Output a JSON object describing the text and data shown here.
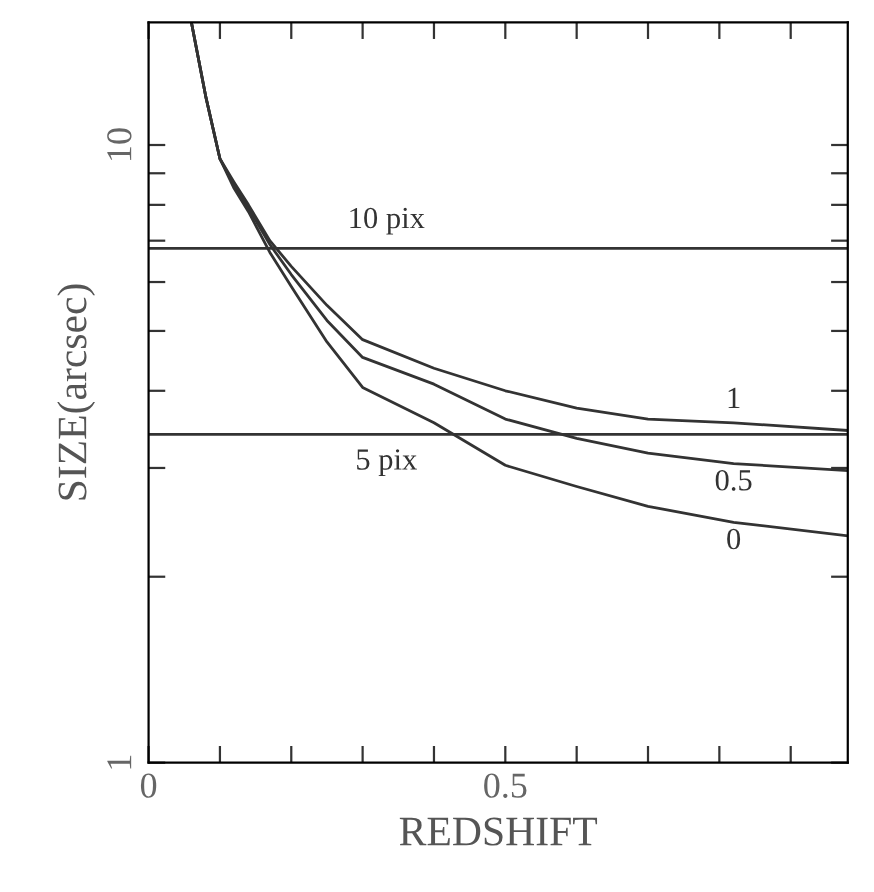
{
  "chart_data": {
    "type": "line",
    "xlabel": "REDSHIFT",
    "ylabel": "SIZE(arcsec)",
    "log": "y",
    "xlim": [
      0,
      0.98
    ],
    "ylim": [
      1,
      15.8
    ],
    "xticks": [
      0,
      {
        "value": 0.1,
        "label": null
      },
      {
        "value": 0.2,
        "label": null
      },
      {
        "value": 0.3,
        "label": null
      },
      {
        "value": 0.4,
        "label": null
      },
      0.5,
      {
        "value": 0.6,
        "label": null
      },
      {
        "value": 0.7,
        "label": null
      },
      {
        "value": 0.8,
        "label": null
      },
      {
        "value": 0.9,
        "label": null
      }
    ],
    "yticks": [
      1,
      {
        "value": 2,
        "label": null
      },
      {
        "value": 3,
        "label": null
      },
      {
        "value": 4,
        "label": null
      },
      {
        "value": 5,
        "label": null
      },
      {
        "value": 6,
        "label": null
      },
      {
        "value": 7,
        "label": null
      },
      {
        "value": 8,
        "label": null
      },
      {
        "value": 9,
        "label": null
      },
      10
    ],
    "x": [
      0.06,
      0.08,
      0.1,
      0.12,
      0.14,
      0.17,
      0.2,
      0.25,
      0.3,
      0.4,
      0.5,
      0.6,
      0.7,
      0.82,
      0.98
    ],
    "series": [
      {
        "name": "1",
        "color": "#333333",
        "values": [
          15.8,
          12,
          9.5,
          8.7,
          8.0,
          7.0,
          6.36,
          5.5,
          4.84,
          4.35,
          4.0,
          3.75,
          3.6,
          3.55,
          3.45
        ]
      },
      {
        "name": "0.5",
        "color": "#333333",
        "values": [
          15.8,
          12,
          9.5,
          8.6,
          7.9,
          6.9,
          6.17,
          5.2,
          4.53,
          4.1,
          3.6,
          3.35,
          3.17,
          3.05,
          2.97
        ]
      },
      {
        "name": "0",
        "color": "#333333",
        "values": [
          15.8,
          12,
          9.5,
          8.5,
          7.8,
          6.7,
          5.9,
          4.8,
          4.05,
          3.55,
          3.03,
          2.8,
          2.6,
          2.45,
          2.33
        ]
      }
    ],
    "ref_lines": [
      {
        "axis": "y",
        "value": 6.8,
        "label": "10 pix",
        "color": "#333333"
      },
      {
        "axis": "y",
        "value": 3.4,
        "label": "5 pix",
        "color": "#333333"
      }
    ],
    "grid": false,
    "legend": false,
    "marker": "none",
    "line_style": "solid"
  }
}
